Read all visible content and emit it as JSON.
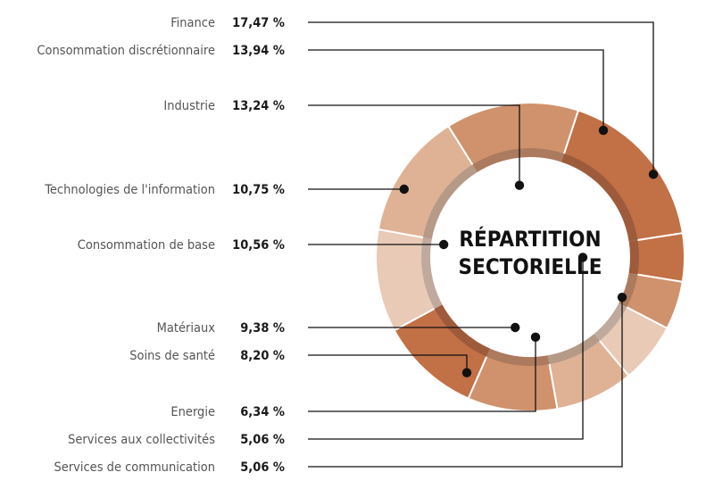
{
  "chart_data": {
    "type": "pie",
    "title": "",
    "center_label": [
      "RÉPARTITION",
      "SECTORIELLE"
    ],
    "legend": "left",
    "categories": [
      "Finance",
      "Consommation discrétionnaire",
      "Industrie",
      "Technologies de l'information",
      "Consommation de base",
      "Matériaux",
      "Soins de santé",
      "Energie",
      "Services aux collectivités",
      "Services de communication"
    ],
    "values": [
      17.47,
      13.94,
      13.24,
      10.75,
      10.56,
      9.38,
      8.2,
      6.34,
      5.06,
      5.06
    ],
    "value_labels": [
      "17,47 %",
      "13,94 %",
      "13,24 %",
      "10,75 %",
      "10,56 %",
      "9,38 %",
      "8,20 %",
      "6,34 %",
      "5,06 %",
      "5,06 %"
    ]
  },
  "colors": {
    "ring_palette": [
      "#c27046",
      "#cf926c",
      "#dfb296",
      "#e8cab6"
    ],
    "inner_ring": [
      "#9e5b3c",
      "#ac7a5e",
      "#b59a88",
      "#bfaa9d"
    ],
    "leader": "#111111"
  }
}
